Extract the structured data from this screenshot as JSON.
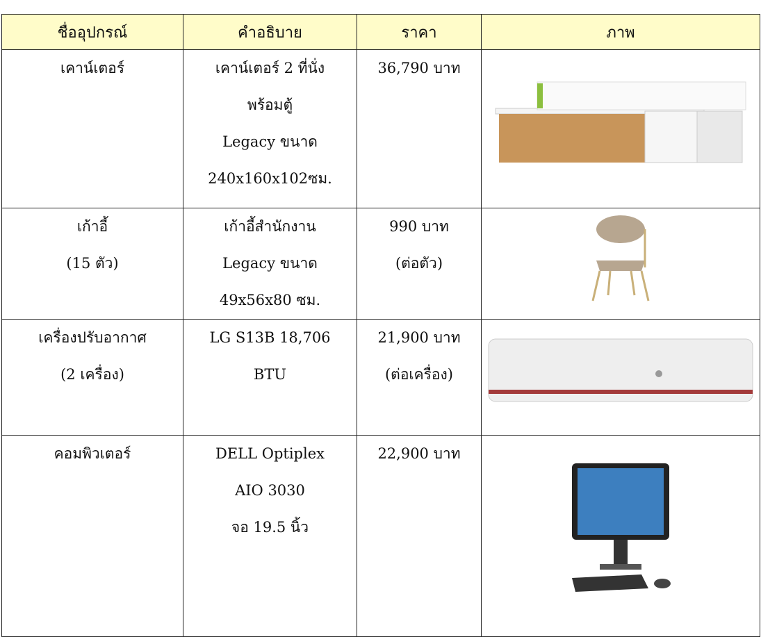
{
  "table": {
    "header": [
      "ชื่ออุปกรณ์",
      "คำอธิบาย",
      "ราคา",
      "ภาพ"
    ],
    "rows": [
      {
        "name": [
          "เคาน์เตอร์"
        ],
        "description": [
          "เคาน์เตอร์ 2 ที่นั่ง",
          "พร้อมตู้",
          "Legacy ขนาด",
          "240x160x102ซม."
        ],
        "price": [
          "36,790 บาท"
        ]
      },
      {
        "name": [
          "เก้าอี้",
          "(15 ตัว)"
        ],
        "description": [
          "เก้าอี้สำนักงาน",
          "Legacy ขนาด",
          "49x56x80 ซม."
        ],
        "price": [
          "990 บาท",
          "(ต่อตัว)"
        ]
      },
      {
        "name": [
          "เครื่องปรับอากาศ",
          "(2 เครื่อง)"
        ],
        "description": [
          "LG S13B 18,706",
          "BTU"
        ],
        "price": [
          "21,900 บาท",
          "(ต่อเครื่อง)"
        ]
      },
      {
        "name": [
          "คอมพิวเตอร์"
        ],
        "description": [
          "DELL Optiplex",
          "AIO 3030",
          "จอ 19.5 นิ้ว"
        ],
        "price": [
          "22,900 บาท"
        ]
      }
    ]
  }
}
